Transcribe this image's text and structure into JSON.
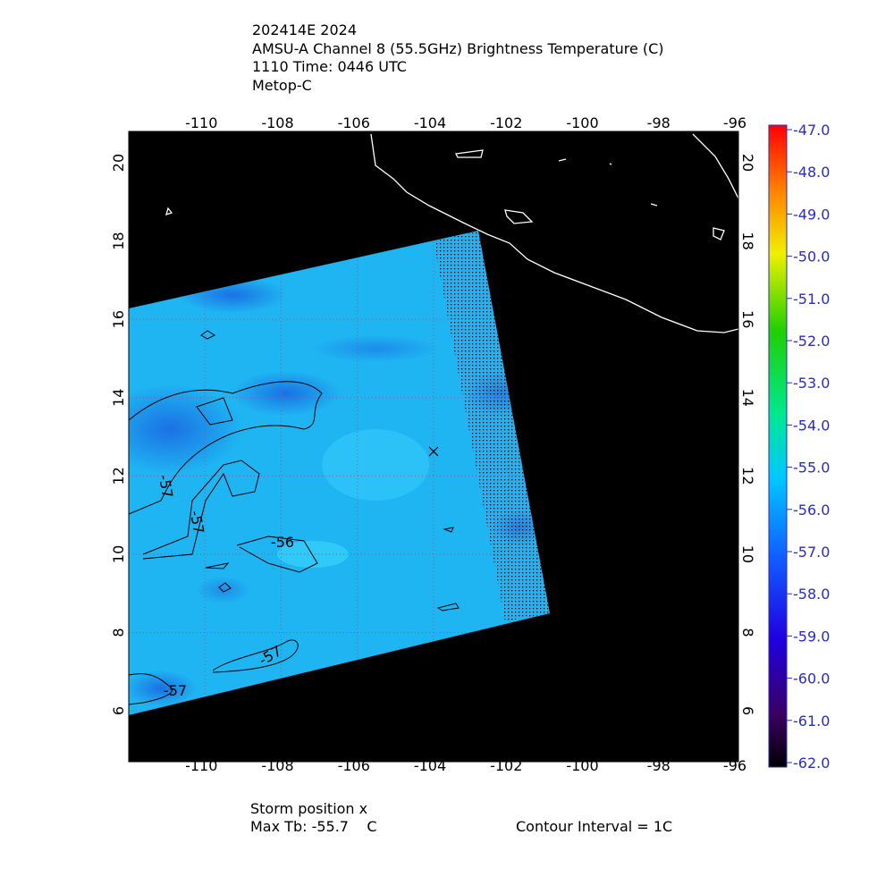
{
  "header": {
    "lines": [
      "202414E 2024",
      "AMSU-A Channel 8 (55.5GHz) Brightness Temperature (C)",
      "1110 Time: 0446 UTC",
      "Metop-C"
    ]
  },
  "map": {
    "lon_range": [
      -112,
      -96
    ],
    "lat_range": [
      4.7,
      20.8
    ],
    "lon_ticks": [
      -110,
      -108,
      -106,
      -104,
      -102,
      -100,
      -98,
      -96
    ],
    "lat_ticks": [
      20,
      18,
      16,
      14,
      12,
      10,
      8,
      6
    ],
    "grid": true
  },
  "colorbar": {
    "range": [
      -62,
      -47
    ],
    "ticks": [
      {
        "value": -47,
        "label": "-47.0"
      },
      {
        "value": -48,
        "label": "-48.0"
      },
      {
        "value": -49,
        "label": "-49.0"
      },
      {
        "value": -50,
        "label": "-50.0"
      },
      {
        "value": -51,
        "label": "-51.0"
      },
      {
        "value": -52,
        "label": "-52.0"
      },
      {
        "value": -53,
        "label": "-53.0"
      },
      {
        "value": -54,
        "label": "-54.0"
      },
      {
        "value": -55,
        "label": "-55.0"
      },
      {
        "value": -56,
        "label": "-56.0"
      },
      {
        "value": -57,
        "label": "-57.0"
      },
      {
        "value": -58,
        "label": "-58.0"
      },
      {
        "value": -59,
        "label": "-59.0"
      },
      {
        "value": -60,
        "label": "-60.0"
      },
      {
        "value": -61,
        "label": "-61.0"
      },
      {
        "value": -62,
        "label": "-62.0"
      }
    ]
  },
  "contour_labels": [
    "-57",
    "-57",
    "-56",
    "-57",
    "-57"
  ],
  "footer": {
    "storm": "Storm position x",
    "max_tb": "Max Tb: -55.7    C",
    "interval": "Contour Interval = 1C"
  }
}
